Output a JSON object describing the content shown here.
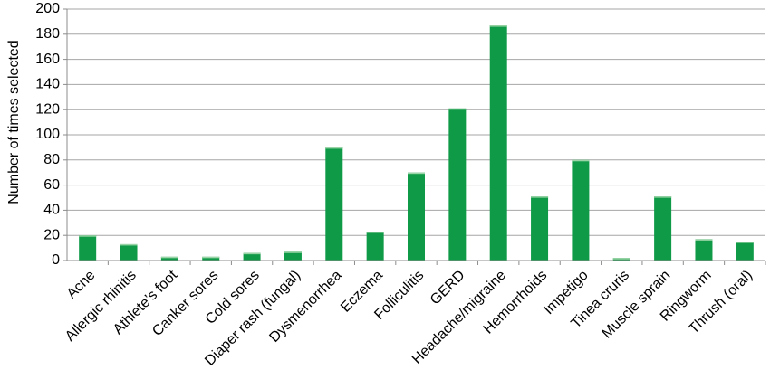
{
  "chart_data": {
    "type": "bar",
    "categories": [
      "Acne",
      "Allergic rhinitis",
      "Athlete’s foot",
      "Canker sores",
      "Cold sores",
      "Diaper rash (fungal)",
      "Dysmenorrhea",
      "Eczema",
      "Folliculitis",
      "GERD",
      "Headache/migraine",
      "Hemorrhoids",
      "Impetigo",
      "Tinea cruris",
      "Muscle sprain",
      "Ringworm",
      "Thrush (oral)"
    ],
    "values": [
      20,
      13,
      3,
      3,
      6,
      7,
      90,
      23,
      70,
      121,
      187,
      51,
      80,
      2,
      51,
      17,
      15
    ],
    "xlabel": "",
    "ylabel": "Number of times selected",
    "ylim": [
      0,
      200
    ],
    "yticks": [
      0,
      20,
      40,
      60,
      80,
      100,
      120,
      140,
      160,
      180,
      200
    ],
    "grid": true,
    "bar_color": "#0f9a48",
    "bar_top_color": "#9bd4a6"
  }
}
